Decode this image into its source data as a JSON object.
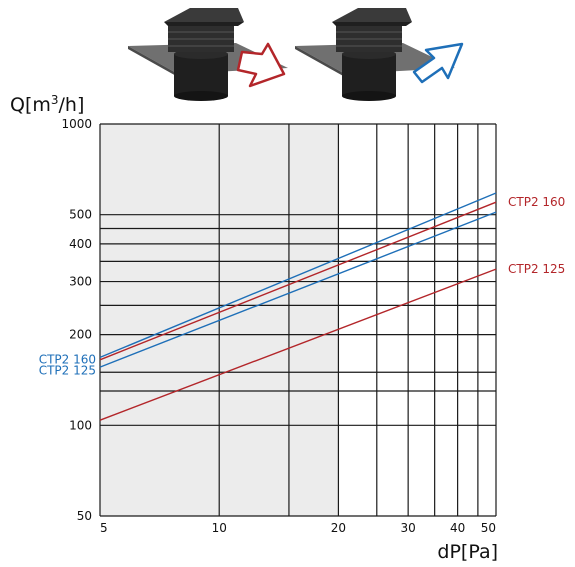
{
  "chart_data": {
    "type": "line",
    "x_scale": "log",
    "y_scale": "log",
    "xlim": [
      5,
      50
    ],
    "ylim": [
      50,
      1000
    ],
    "xlabel": "dP[Pa]",
    "ylabel": "Q[m³/h]",
    "x_ticks": [
      5,
      10,
      20,
      30,
      40,
      50
    ],
    "y_ticks": [
      50,
      100,
      200,
      300,
      400,
      500,
      1000
    ],
    "x_grid": [
      5,
      10,
      15,
      20,
      25,
      30,
      35,
      40,
      45,
      50
    ],
    "y_grid": [
      50,
      100,
      130,
      150,
      200,
      250,
      300,
      350,
      400,
      450,
      500,
      1000
    ],
    "shaded_region": {
      "x": [
        5,
        20
      ]
    },
    "legend": "none",
    "series": [
      {
        "name": "CTP2 160",
        "color": "#1e6fb8",
        "x": [
          5,
          50
        ],
        "y": [
          168,
          590
        ]
      },
      {
        "name": "CTP2 125",
        "color": "#1e6fb8",
        "x": [
          5,
          50
        ],
        "y": [
          156,
          510
        ]
      },
      {
        "name": "CTP2 160",
        "color": "#b3262a",
        "x": [
          5,
          50
        ],
        "y": [
          165,
          550
        ]
      },
      {
        "name": "CTP2 125",
        "color": "#b3262a",
        "x": [
          5,
          50
        ],
        "y": [
          104,
          330
        ]
      }
    ],
    "series_labels": [
      {
        "text": "CTP2  160",
        "color": "#b3262a",
        "side": "right",
        "series": 2
      },
      {
        "text": "CTP2  125",
        "color": "#b3262a",
        "side": "right",
        "series": 3
      },
      {
        "text": "CTP2  160",
        "color": "#1e6fb8",
        "side": "left",
        "series": 0
      },
      {
        "text": "CTP2  125",
        "color": "#1e6fb8",
        "side": "left",
        "series": 1
      }
    ],
    "colors": {
      "grid": "#1a1a1a",
      "shade": "#ececec",
      "outflow_arrow": "#b3262a",
      "inflow_arrow": "#1e6fb8"
    }
  },
  "illustration": {
    "left": {
      "icon": "roof-vent-outflow-icon",
      "arrow": "outflow-arrow-icon"
    },
    "right": {
      "icon": "roof-vent-inflow-icon",
      "arrow": "inflow-arrow-icon"
    }
  }
}
